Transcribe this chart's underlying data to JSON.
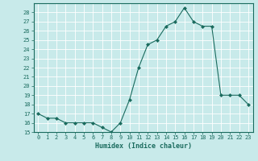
{
  "x": [
    0,
    1,
    2,
    3,
    4,
    5,
    6,
    7,
    8,
    9,
    10,
    11,
    12,
    13,
    14,
    15,
    16,
    17,
    18,
    19,
    20,
    21,
    22,
    23
  ],
  "y": [
    17,
    16.5,
    16.5,
    16,
    16,
    16,
    16,
    15.5,
    15,
    16,
    18.5,
    22,
    24.5,
    25,
    26.5,
    27,
    28.5,
    27,
    26.5,
    26.5,
    19,
    19,
    19,
    18
  ],
  "xlabel": "Humidex (Indice chaleur)",
  "ylim": [
    15,
    29
  ],
  "xlim": [
    -0.5,
    23.5
  ],
  "yticks": [
    15,
    16,
    17,
    18,
    19,
    20,
    21,
    22,
    23,
    24,
    25,
    26,
    27,
    28
  ],
  "xticks": [
    0,
    1,
    2,
    3,
    4,
    5,
    6,
    7,
    8,
    9,
    10,
    11,
    12,
    13,
    14,
    15,
    16,
    17,
    18,
    19,
    20,
    21,
    22,
    23
  ],
  "line_color": "#1a6b5e",
  "marker": "D",
  "marker_size": 2,
  "bg_color": "#c8eaea",
  "grid_color": "#ffffff",
  "tick_color": "#1a6b5e",
  "label_color": "#1a6b5e",
  "tick_fontsize": 5,
  "label_fontsize": 6
}
